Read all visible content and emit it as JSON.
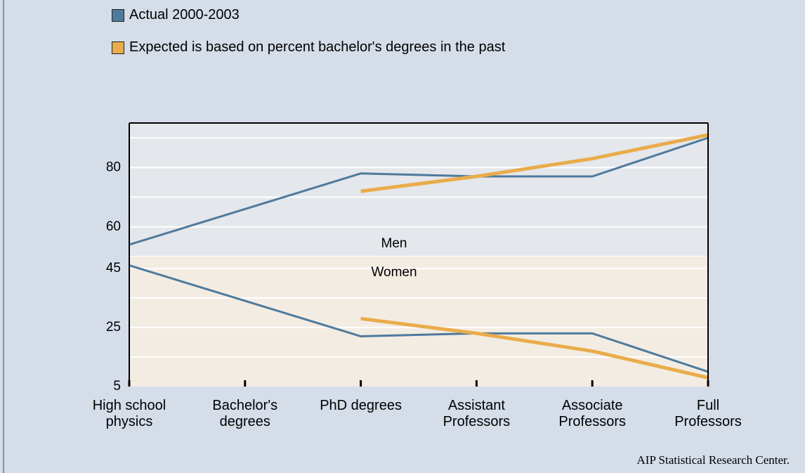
{
  "chart_data": {
    "type": "line",
    "categories": [
      "High school physics",
      "Bachelor's degrees",
      "PhD degrees",
      "Assistant Professors",
      "Associate Professors",
      "Full Professors"
    ],
    "series": [
      {
        "name": "Actual 2000-2003",
        "color": "#4e7a9c"
      },
      {
        "name": "Expected is based on percent bachelor's degrees in the past",
        "color": "#e9ac4b"
      }
    ],
    "panels": [
      {
        "label": "Men",
        "background": "#e4e7eb",
        "ylim": [
          50,
          95
        ],
        "yticks": [
          60,
          80
        ],
        "grid": [
          50,
          60,
          70,
          80,
          90
        ],
        "series_values": [
          [
            54,
            66,
            78,
            77,
            77,
            90
          ],
          [
            null,
            null,
            72,
            77,
            83,
            91
          ]
        ]
      },
      {
        "label": "Women",
        "background": "#f3ece3",
        "ylim": [
          5,
          49
        ],
        "yticks": [
          5,
          25,
          45
        ],
        "grid": [
          15,
          25,
          35,
          45
        ],
        "series_values": [
          [
            46,
            34,
            22,
            23,
            23,
            10
          ],
          [
            null,
            null,
            28,
            23,
            17,
            8
          ]
        ]
      }
    ],
    "source": "AIP Statistical Research Center."
  }
}
